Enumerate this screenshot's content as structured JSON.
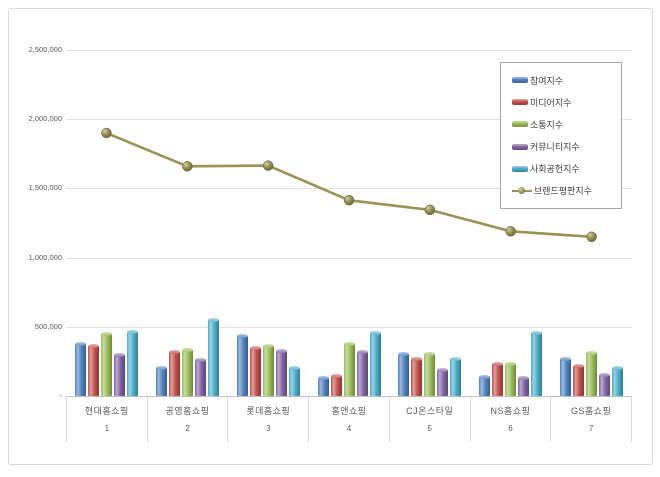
{
  "window": {
    "background": "#ffffff",
    "card_border": "#d9d9d9"
  },
  "y_axis": {
    "tick_labels": [
      "2,500,000",
      "2,000,000",
      "1,500,000",
      "1,000,000",
      "500,000",
      "-"
    ],
    "tick_values": [
      2500000,
      2000000,
      1500000,
      1000000,
      500000,
      0
    ]
  },
  "legend": {
    "position": "upper-right",
    "border_color": "#a6a6a6"
  },
  "chart_data": {
    "type": "bar",
    "subtype": "grouped-bars-with-line-overlay",
    "title": "",
    "xlabel": "",
    "ylabel": "",
    "ylim": [
      0,
      2500000
    ],
    "grid": true,
    "legend_position": "upper-right",
    "categories": [
      "현대홈쇼핑",
      "공영홈쇼핑",
      "롯데홈쇼핑",
      "홈앤쇼핑",
      "CJ온스타일",
      "NS홈쇼핑",
      "GS홈쇼핑"
    ],
    "category_ranks": [
      "1",
      "2",
      "3",
      "4",
      "5",
      "6",
      "7"
    ],
    "y_ticks": [
      2500000,
      2000000,
      1500000,
      1000000,
      500000,
      0
    ],
    "series": [
      {
        "name": "참여지수",
        "type": "bar",
        "color": "#4F81BD",
        "values": [
          375000,
          200000,
          435000,
          130000,
          305000,
          140000,
          270000
        ]
      },
      {
        "name": "미디어지수",
        "type": "bar",
        "color": "#C0504D",
        "values": [
          360000,
          315000,
          345000,
          145000,
          270000,
          230000,
          215000
        ]
      },
      {
        "name": "소통지수",
        "type": "bar",
        "color": "#9BBB59",
        "values": [
          445000,
          330000,
          360000,
          375000,
          305000,
          235000,
          310000
        ]
      },
      {
        "name": "커뮤니티지수",
        "type": "bar",
        "color": "#8064A2",
        "values": [
          295000,
          260000,
          325000,
          320000,
          190000,
          130000,
          155000
        ]
      },
      {
        "name": "사회공헌지수",
        "type": "bar",
        "color": "#4BACC6",
        "values": [
          465000,
          550000,
          205000,
          455000,
          270000,
          455000,
          205000
        ]
      },
      {
        "name": "브랜드평판지수",
        "type": "line",
        "color": "#9B9356",
        "values": [
          1900000,
          1660000,
          1665000,
          1415000,
          1345000,
          1190000,
          1150000
        ]
      }
    ]
  }
}
